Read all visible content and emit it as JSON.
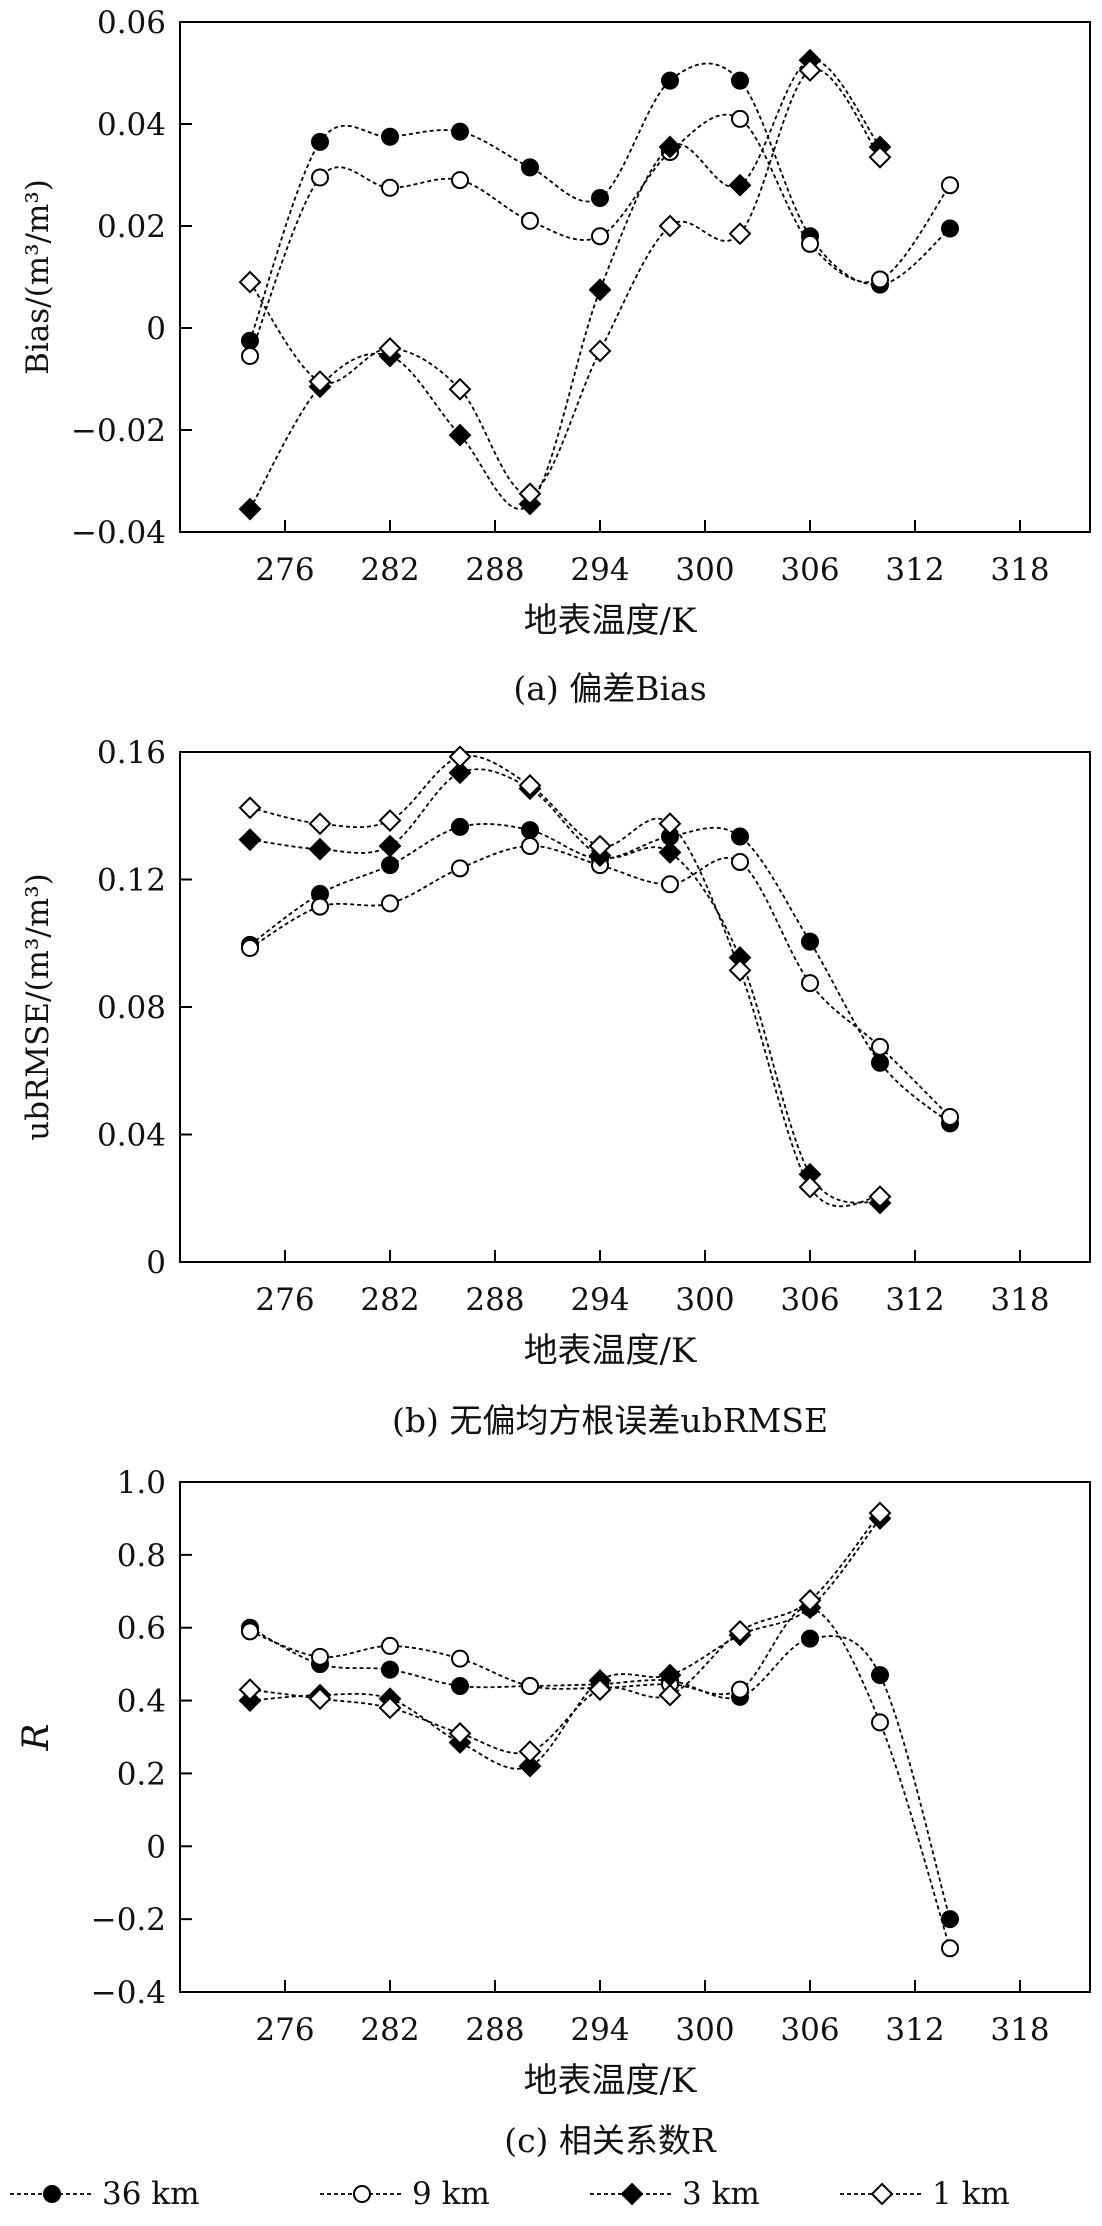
{
  "legend": [
    {
      "label": "36 km",
      "marker": "filled-circle-icon"
    },
    {
      "label": "9 km",
      "marker": "open-circle-icon"
    },
    {
      "label": "3 km",
      "marker": "filled-diamond-icon"
    },
    {
      "label": "1 km",
      "marker": "open-diamond-icon"
    }
  ],
  "chart_data": [
    {
      "type": "line",
      "caption": "(a) 偏差Bias",
      "xlabel": "地表温度/K",
      "ylabel": "Bias/(m³/m³)",
      "xlim": [
        270,
        322
      ],
      "ylim": [
        -0.04,
        0.06
      ],
      "xticks": [
        276,
        282,
        288,
        294,
        300,
        306,
        312,
        318
      ],
      "yticks": [
        -0.04,
        -0.02,
        0,
        0.02,
        0.04,
        0.06
      ],
      "ytick_labels": [
        "−0.04",
        "−0.02",
        "0",
        "0.02",
        "0.04",
        "0.06"
      ],
      "grid": false,
      "series": [
        {
          "name": "36 km",
          "x": [
            274,
            278,
            282,
            286,
            290,
            294,
            298,
            302,
            306,
            310,
            314
          ],
          "y": [
            -0.0025,
            0.0365,
            0.0375,
            0.0385,
            0.0315,
            0.0255,
            0.0485,
            0.0485,
            0.018,
            0.0085,
            0.0195
          ]
        },
        {
          "name": "9 km",
          "x": [
            274,
            278,
            282,
            286,
            290,
            294,
            298,
            302,
            306,
            310,
            314
          ],
          "y": [
            -0.0055,
            0.0295,
            0.0275,
            0.029,
            0.021,
            0.018,
            0.0345,
            0.041,
            0.0165,
            0.0095,
            0.028
          ]
        },
        {
          "name": "3 km",
          "x": [
            274,
            278,
            282,
            286,
            290,
            294,
            298,
            302,
            306,
            310
          ],
          "y": [
            -0.0355,
            -0.0115,
            -0.0055,
            -0.021,
            -0.0345,
            0.0075,
            0.0355,
            0.028,
            0.0525,
            0.0355
          ]
        },
        {
          "name": "1 km",
          "x": [
            274,
            278,
            282,
            286,
            290,
            294,
            298,
            302,
            306,
            310
          ],
          "y": [
            0.009,
            -0.0105,
            -0.004,
            -0.012,
            -0.0325,
            -0.0045,
            0.02,
            0.0185,
            0.0505,
            0.0335
          ]
        }
      ]
    },
    {
      "type": "line",
      "caption": "(b) 无偏均方根误差ubRMSE",
      "xlabel": "地表温度/K",
      "ylabel": "ubRMSE/(m³/m³)",
      "xlim": [
        270,
        322
      ],
      "ylim": [
        0,
        0.16
      ],
      "xticks": [
        276,
        282,
        288,
        294,
        300,
        306,
        312,
        318
      ],
      "yticks": [
        0,
        0.04,
        0.08,
        0.12,
        0.16
      ],
      "ytick_labels": [
        "0",
        "0.04",
        "0.08",
        "0.12",
        "0.16"
      ],
      "grid": false,
      "series": [
        {
          "name": "36 km",
          "x": [
            274,
            278,
            282,
            286,
            290,
            294,
            298,
            302,
            306,
            310,
            314
          ],
          "y": [
            0.0995,
            0.1155,
            0.1245,
            0.1365,
            0.1355,
            0.1265,
            0.1335,
            0.1335,
            0.1005,
            0.0625,
            0.0435
          ]
        },
        {
          "name": "9 km",
          "x": [
            274,
            278,
            282,
            286,
            290,
            294,
            298,
            302,
            306,
            310,
            314
          ],
          "y": [
            0.0985,
            0.1115,
            0.1125,
            0.1235,
            0.1305,
            0.1245,
            0.1185,
            0.1255,
            0.0875,
            0.0675,
            0.0455
          ]
        },
        {
          "name": "3 km",
          "x": [
            274,
            278,
            282,
            286,
            290,
            294,
            298,
            302,
            306,
            310
          ],
          "y": [
            0.1325,
            0.1295,
            0.1305,
            0.1535,
            0.1485,
            0.1275,
            0.1285,
            0.0955,
            0.0275,
            0.0185
          ]
        },
        {
          "name": "1 km",
          "x": [
            274,
            278,
            282,
            286,
            290,
            294,
            298,
            302,
            306,
            310
          ],
          "y": [
            0.1425,
            0.1375,
            0.1385,
            0.1585,
            0.1495,
            0.1305,
            0.1375,
            0.0915,
            0.0235,
            0.0205
          ]
        }
      ]
    },
    {
      "type": "line",
      "caption": "(c) 相关系数R",
      "xlabel": "地表温度/K",
      "ylabel": "R",
      "xlim": [
        270,
        322
      ],
      "ylim": [
        -0.4,
        1.0
      ],
      "xticks": [
        276,
        282,
        288,
        294,
        300,
        306,
        312,
        318
      ],
      "yticks": [
        -0.4,
        -0.2,
        0,
        0.2,
        0.4,
        0.6,
        0.8,
        1.0
      ],
      "ytick_labels": [
        "−0.4",
        "−0.2",
        "0",
        "0.2",
        "0.4",
        "0.6",
        "0.8",
        "1.0"
      ],
      "grid": false,
      "series": [
        {
          "name": "36 km",
          "x": [
            274,
            278,
            282,
            286,
            290,
            294,
            298,
            302,
            306,
            310,
            314
          ],
          "y": [
            0.6,
            0.5,
            0.485,
            0.44,
            0.44,
            0.445,
            0.455,
            0.41,
            0.57,
            0.47,
            -0.2
          ]
        },
        {
          "name": "9 km",
          "x": [
            274,
            278,
            282,
            286,
            290,
            294,
            298,
            302,
            306,
            310,
            314
          ],
          "y": [
            0.59,
            0.52,
            0.55,
            0.515,
            0.44,
            0.435,
            0.445,
            0.43,
            0.655,
            0.34,
            -0.28
          ]
        },
        {
          "name": "3 km",
          "x": [
            274,
            278,
            282,
            286,
            290,
            294,
            298,
            302,
            306,
            310
          ],
          "y": [
            0.4,
            0.415,
            0.405,
            0.285,
            0.22,
            0.455,
            0.47,
            0.58,
            0.655,
            0.9
          ]
        },
        {
          "name": "1 km",
          "x": [
            274,
            278,
            282,
            286,
            290,
            294,
            298,
            302,
            306,
            310
          ],
          "y": [
            0.43,
            0.405,
            0.38,
            0.31,
            0.26,
            0.43,
            0.415,
            0.59,
            0.675,
            0.915
          ]
        }
      ]
    }
  ]
}
